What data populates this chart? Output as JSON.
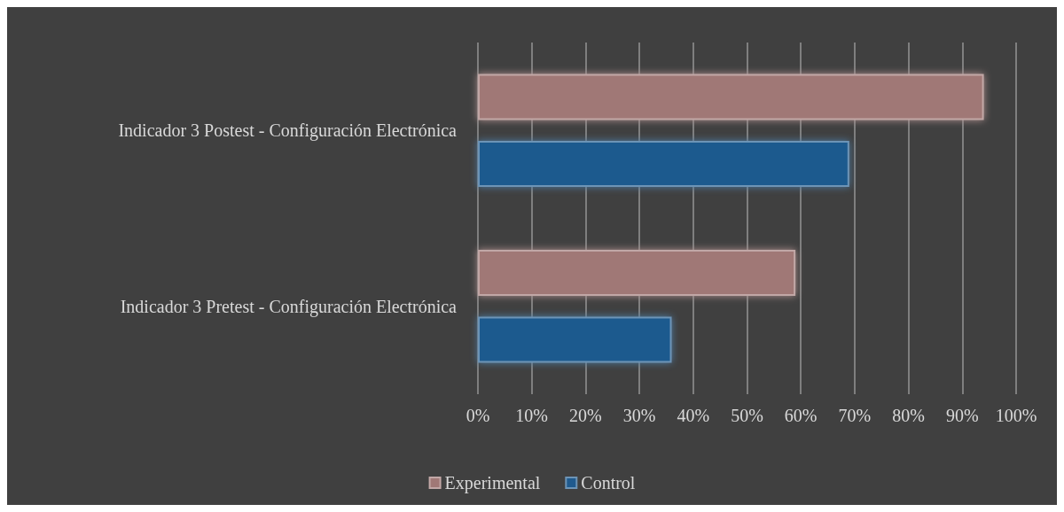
{
  "chart_data": {
    "type": "bar",
    "orientation": "horizontal",
    "categories": [
      "Indicador 3 Postest - Configuración Electrónica",
      "Indicador 3 Pretest - Configuración Electrónica"
    ],
    "series": [
      {
        "name": "Experimental",
        "color": "#a07876",
        "values": [
          0.94,
          0.59
        ]
      },
      {
        "name": "Control",
        "color": "#1f5a8e",
        "values": [
          0.69,
          0.36
        ]
      }
    ],
    "xlim": [
      0,
      1
    ],
    "xticks": [
      {
        "value": 0,
        "label": "0%"
      },
      {
        "value": 0.1,
        "label": "10%"
      },
      {
        "value": 0.2,
        "label": "20%"
      },
      {
        "value": 0.3,
        "label": "30%"
      },
      {
        "value": 0.4,
        "label": "40%"
      },
      {
        "value": 0.5,
        "label": "50%"
      },
      {
        "value": 0.6,
        "label": "60%"
      },
      {
        "value": 0.7,
        "label": "70%"
      },
      {
        "value": 0.8,
        "label": "80%"
      },
      {
        "value": 0.9,
        "label": "90%"
      },
      {
        "value": 1,
        "label": "100%"
      }
    ],
    "grid": "x",
    "legend": "bottom"
  }
}
